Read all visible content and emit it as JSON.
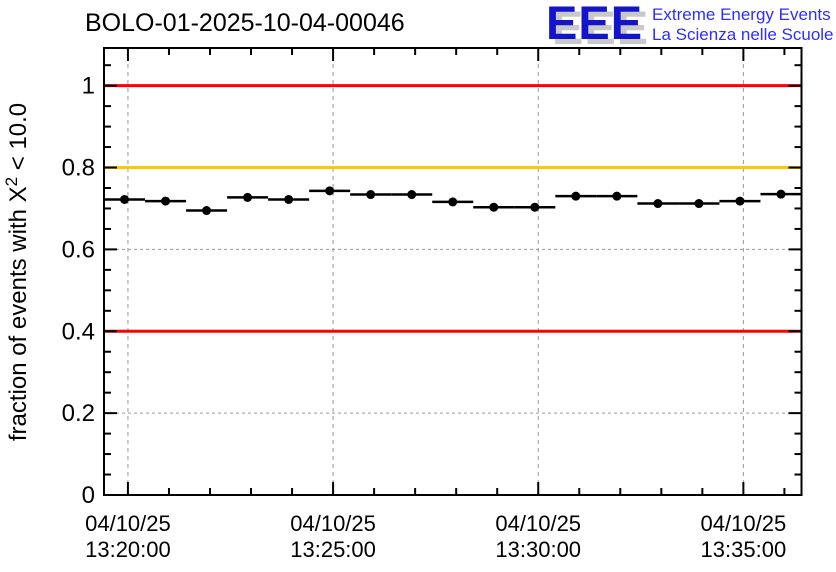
{
  "header": {
    "title": "BOLO-01-2025-10-04-00046",
    "logo": {
      "acronym": "EEE",
      "line1": "Extreme Energy Events",
      "line2": "La Scienza nelle Scuole",
      "acronym_color": "#1414CC",
      "shadow_color": "#C9C9C9",
      "text_color": "#2E2EFF"
    }
  },
  "chart_data": {
    "type": "scatter",
    "title": "BOLO-01-2025-10-04-00046",
    "ylabel_prefix": "fraction of events with X",
    "ylabel_sup": "2",
    "ylabel_suffix": " < 10.0",
    "grid": true,
    "legend": "none",
    "x_axis": {
      "kind": "time",
      "date_label": "04/10/25",
      "range_s": [
        -35,
        985
      ],
      "major_ticks_s": [
        0,
        300,
        600,
        900
      ],
      "minor_step_s": 60,
      "labels": [
        {
          "date": "04/10/25",
          "time": "13:20:00"
        },
        {
          "date": "04/10/25",
          "time": "13:25:00"
        },
        {
          "date": "04/10/25",
          "time": "13:30:00"
        },
        {
          "date": "04/10/25",
          "time": "13:35:00"
        }
      ]
    },
    "y_axis": {
      "range": [
        0,
        1.092
      ],
      "ticks": [
        0,
        0.2,
        0.4,
        0.6,
        0.8,
        1.0
      ],
      "tick_labels": [
        "0",
        "0.2",
        "0.4",
        "0.6",
        "0.8",
        "1"
      ],
      "minor_step": 0.05
    },
    "reference_lines": [
      {
        "y": 1.0,
        "color": "#FF0000",
        "name": "upper-red-line"
      },
      {
        "y": 0.8,
        "color": "#FFC800",
        "name": "warning-orange-line"
      },
      {
        "y": 0.4,
        "color": "#FF0000",
        "name": "lower-red-line"
      }
    ],
    "series": [
      {
        "name": "fraction of events with chi2 < 10",
        "marker": "filled-circle",
        "color": "#000000",
        "x_error_s": 30,
        "t_offset_s": [
          -5,
          55,
          115,
          175,
          235,
          295,
          355,
          415,
          475,
          535,
          595,
          655,
          715,
          775,
          835,
          895,
          955
        ],
        "values": [
          0.722,
          0.718,
          0.695,
          0.727,
          0.722,
          0.743,
          0.734,
          0.734,
          0.716,
          0.703,
          0.703,
          0.73,
          0.73,
          0.712,
          0.712,
          0.718,
          0.735
        ]
      }
    ],
    "grid_color": "#9A9A9A",
    "frame_color": "#000000"
  }
}
